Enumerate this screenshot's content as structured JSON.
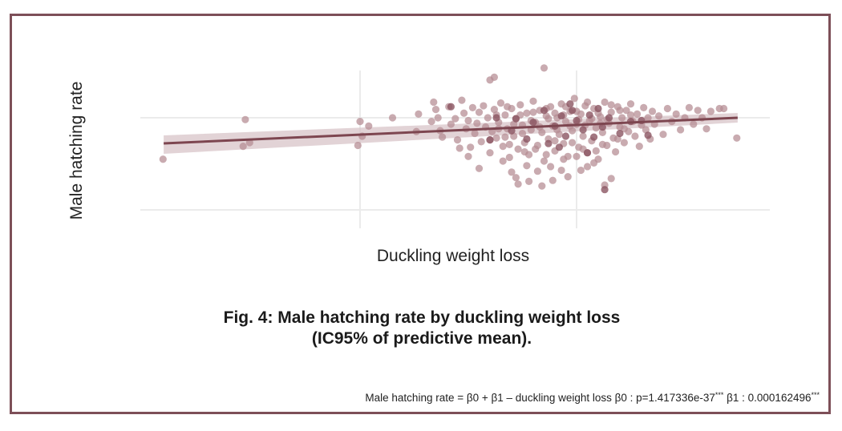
{
  "colors": {
    "frame": "#7d4f58",
    "point": "#b48a92",
    "point_dark": "#8b5562",
    "line": "#7d4650",
    "band": "#d8c4c8",
    "grid": "#ebebeb",
    "text": "#222222"
  },
  "chart_data": {
    "type": "scatter",
    "title": "Fig. 4: Male hatching rate by duckling weight loss",
    "subtitle": "(IC95% of predictive mean).",
    "xlabel": "Duckling weight loss",
    "ylabel": "Male hatching rate",
    "x_ticks": [
      0,
      1
    ],
    "y_ticks": [
      0,
      1
    ],
    "x_tick_labels": [
      "",
      ""
    ],
    "y_tick_labels": [
      "",
      ""
    ],
    "xlim": [
      -1.0,
      1.9
    ],
    "ylim": [
      -0.2,
      1.55
    ],
    "grid": true,
    "legend": "none",
    "regression": {
      "x": [
        -0.907,
        1.744
      ],
      "y": [
        0.722,
        1.0
      ],
      "ci_lower": [
        0.609,
        0.948
      ],
      "ci_upper": [
        0.809,
        1.052
      ]
    },
    "points": [
      [
        -0.91,
        0.55
      ],
      [
        -0.54,
        0.69
      ],
      [
        -0.53,
        0.98
      ],
      [
        -0.51,
        0.73
      ],
      [
        0.0,
        0.96
      ],
      [
        0.01,
        0.8
      ],
      [
        0.04,
        0.91
      ],
      [
        -0.01,
        0.7
      ],
      [
        0.15,
        1.0
      ],
      [
        0.26,
        0.85
      ],
      [
        0.27,
        1.04
      ],
      [
        0.35,
        1.09
      ],
      [
        0.33,
        0.96
      ],
      [
        0.37,
        0.86
      ],
      [
        0.34,
        1.17
      ],
      [
        0.36,
        1.0
      ],
      [
        0.38,
        0.79
      ],
      [
        0.41,
        1.12
      ],
      [
        0.42,
        0.93
      ],
      [
        0.44,
        0.99
      ],
      [
        0.45,
        0.76
      ],
      [
        0.46,
        0.67
      ],
      [
        0.47,
        1.19
      ],
      [
        0.48,
        1.05
      ],
      [
        0.49,
        0.88
      ],
      [
        0.5,
        0.97
      ],
      [
        0.51,
        0.68
      ],
      [
        0.52,
        1.11
      ],
      [
        0.53,
        0.83
      ],
      [
        0.54,
        0.94
      ],
      [
        0.55,
        1.06
      ],
      [
        0.56,
        0.74
      ],
      [
        0.57,
        1.13
      ],
      [
        0.58,
        0.9
      ],
      [
        0.59,
        1.0
      ],
      [
        0.6,
        0.62
      ],
      [
        0.61,
        0.85
      ],
      [
        0.62,
        1.09
      ],
      [
        0.63,
        0.78
      ],
      [
        0.64,
        0.95
      ],
      [
        0.65,
        1.16
      ],
      [
        0.66,
        0.69
      ],
      [
        0.67,
        1.03
      ],
      [
        0.68,
        0.88
      ],
      [
        0.69,
        0.57
      ],
      [
        0.7,
        1.1
      ],
      [
        0.71,
        0.8
      ],
      [
        0.72,
        0.99
      ],
      [
        0.73,
        0.66
      ],
      [
        0.74,
        1.14
      ],
      [
        0.75,
        0.92
      ],
      [
        0.76,
        0.73
      ],
      [
        0.77,
        1.05
      ],
      [
        0.78,
        0.6
      ],
      [
        0.79,
        0.87
      ],
      [
        0.8,
        1.18
      ],
      [
        0.81,
        0.95
      ],
      [
        0.82,
        0.7
      ],
      [
        0.83,
        1.08
      ],
      [
        0.84,
        0.84
      ],
      [
        0.85,
        0.53
      ],
      [
        0.86,
        1.02
      ],
      [
        0.87,
        0.77
      ],
      [
        0.88,
        1.12
      ],
      [
        0.89,
        0.91
      ],
      [
        0.9,
        0.64
      ],
      [
        0.91,
        1.0
      ],
      [
        0.92,
        0.82
      ],
      [
        0.93,
        1.15
      ],
      [
        0.94,
        0.72
      ],
      [
        0.95,
        0.96
      ],
      [
        0.96,
        0.58
      ],
      [
        0.97,
        1.07
      ],
      [
        0.98,
        0.86
      ],
      [
        0.99,
        1.21
      ],
      [
        1.0,
        0.93
      ],
      [
        1.01,
        0.68
      ],
      [
        1.02,
        1.04
      ],
      [
        1.03,
        0.8
      ],
      [
        1.04,
        1.13
      ],
      [
        1.05,
        0.62
      ],
      [
        1.06,
        0.97
      ],
      [
        1.07,
        0.75
      ],
      [
        1.08,
        1.1
      ],
      [
        1.09,
        0.89
      ],
      [
        1.1,
        0.55
      ],
      [
        1.11,
        1.01
      ],
      [
        1.12,
        0.84
      ],
      [
        1.13,
        1.17
      ],
      [
        1.14,
        0.7
      ],
      [
        1.15,
        0.94
      ],
      [
        1.16,
        1.06
      ],
      [
        1.17,
        0.78
      ],
      [
        1.18,
        0.63
      ],
      [
        1.19,
        1.12
      ],
      [
        1.2,
        0.9
      ],
      [
        1.21,
        1.0
      ],
      [
        1.22,
        0.73
      ],
      [
        1.23,
        1.08
      ],
      [
        1.24,
        0.85
      ],
      [
        1.25,
        1.15
      ],
      [
        1.26,
        0.96
      ],
      [
        1.27,
        0.8
      ],
      [
        1.28,
        1.04
      ],
      [
        1.29,
        0.69
      ],
      [
        1.3,
        0.92
      ],
      [
        1.31,
        1.11
      ],
      [
        1.32,
        0.87
      ],
      [
        1.33,
        1.0
      ],
      [
        1.34,
        0.77
      ],
      [
        1.35,
        1.07
      ],
      [
        1.36,
        0.93
      ],
      [
        1.38,
        1.02
      ],
      [
        1.4,
        0.82
      ],
      [
        1.42,
        1.1
      ],
      [
        1.44,
        0.96
      ],
      [
        1.46,
        1.04
      ],
      [
        1.48,
        0.87
      ],
      [
        1.5,
        1.0
      ],
      [
        1.52,
        1.11
      ],
      [
        1.54,
        0.93
      ],
      [
        1.56,
        1.08
      ],
      [
        1.58,
        1.0
      ],
      [
        1.6,
        0.88
      ],
      [
        1.62,
        1.07
      ],
      [
        1.66,
        1.1
      ],
      [
        1.68,
        1.1
      ],
      [
        1.74,
        0.78
      ],
      [
        0.6,
        1.41
      ],
      [
        0.62,
        1.44
      ],
      [
        0.85,
        1.54
      ],
      [
        0.5,
        0.58
      ],
      [
        0.55,
        0.45
      ],
      [
        0.66,
        0.53
      ],
      [
        0.7,
        0.41
      ],
      [
        0.72,
        0.35
      ],
      [
        0.73,
        0.28
      ],
      [
        0.78,
        0.31
      ],
      [
        0.84,
        0.26
      ],
      [
        0.89,
        0.32
      ],
      [
        0.82,
        0.42
      ],
      [
        0.96,
        0.36
      ],
      [
        1.02,
        0.43
      ],
      [
        1.05,
        0.47
      ],
      [
        1.0,
        0.58
      ],
      [
        1.09,
        0.64
      ],
      [
        1.13,
        0.27
      ],
      [
        1.16,
        0.34
      ],
      [
        1.08,
        0.51
      ],
      [
        0.93,
        0.43
      ],
      [
        0.77,
        0.48
      ],
      [
        0.88,
        0.47
      ],
      [
        0.6,
        0.76
      ],
      [
        0.64,
        0.88
      ],
      [
        0.67,
        0.79
      ],
      [
        0.71,
        0.93
      ],
      [
        0.75,
        0.83
      ],
      [
        0.79,
        0.97
      ],
      [
        0.83,
        0.9
      ],
      [
        0.87,
        0.99
      ],
      [
        0.91,
        0.87
      ],
      [
        0.94,
        1.03
      ],
      [
        0.97,
        0.91
      ],
      [
        1.01,
        0.98
      ],
      [
        1.04,
        0.92
      ],
      [
        1.07,
        0.99
      ],
      [
        1.11,
        0.94
      ],
      [
        1.14,
        0.98
      ],
      [
        0.63,
        1.03
      ],
      [
        0.68,
        1.12
      ],
      [
        0.74,
        1.03
      ],
      [
        0.8,
        1.06
      ],
      [
        0.86,
        1.1
      ],
      [
        0.9,
        1.05
      ],
      [
        0.95,
        1.12
      ],
      [
        1.0,
        1.07
      ],
      [
        1.05,
        1.17
      ],
      [
        1.1,
        1.05
      ],
      [
        1.16,
        1.14
      ],
      [
        1.2,
        1.08
      ],
      [
        1.25,
        1.03
      ],
      [
        0.69,
        0.71
      ],
      [
        0.81,
        0.66
      ],
      [
        0.9,
        0.75
      ],
      [
        0.98,
        0.73
      ],
      [
        1.03,
        0.66
      ],
      [
        1.12,
        0.71
      ],
      [
        1.19,
        0.77
      ],
      [
        1.22,
        0.88
      ],
      [
        0.76,
        0.63
      ],
      [
        0.86,
        0.6
      ],
      [
        0.94,
        0.55
      ]
    ],
    "dark_points": [
      [
        0.42,
        1.12
      ],
      [
        0.63,
        1.0
      ],
      [
        0.7,
        0.86
      ],
      [
        0.8,
        0.95
      ],
      [
        0.85,
        1.08
      ],
      [
        0.87,
        0.72
      ],
      [
        0.9,
        0.91
      ],
      [
        0.93,
        1.02
      ],
      [
        0.95,
        0.8
      ],
      [
        0.98,
        1.08
      ],
      [
        1.0,
        0.97
      ],
      [
        1.03,
        0.87
      ],
      [
        1.06,
        1.03
      ],
      [
        1.08,
        0.79
      ],
      [
        1.1,
        1.1
      ],
      [
        1.12,
        0.9
      ],
      [
        1.15,
        1.0
      ],
      [
        1.2,
        0.83
      ],
      [
        1.25,
        0.96
      ],
      [
        1.3,
        0.97
      ],
      [
        1.33,
        0.81
      ],
      [
        0.6,
        0.76
      ],
      [
        0.77,
        0.77
      ],
      [
        1.13,
        0.22
      ],
      [
        0.92,
        0.68
      ],
      [
        1.05,
        0.62
      ],
      [
        0.72,
        0.99
      ],
      [
        0.97,
        1.15
      ]
    ]
  },
  "footnote": {
    "text": "Male hatching rate = β0 + β1 – duckling weight loss β0 : p=1.417336e-37",
    "sig1": "***",
    "text2": " β1 : 0.000162496",
    "sig2": "***"
  }
}
